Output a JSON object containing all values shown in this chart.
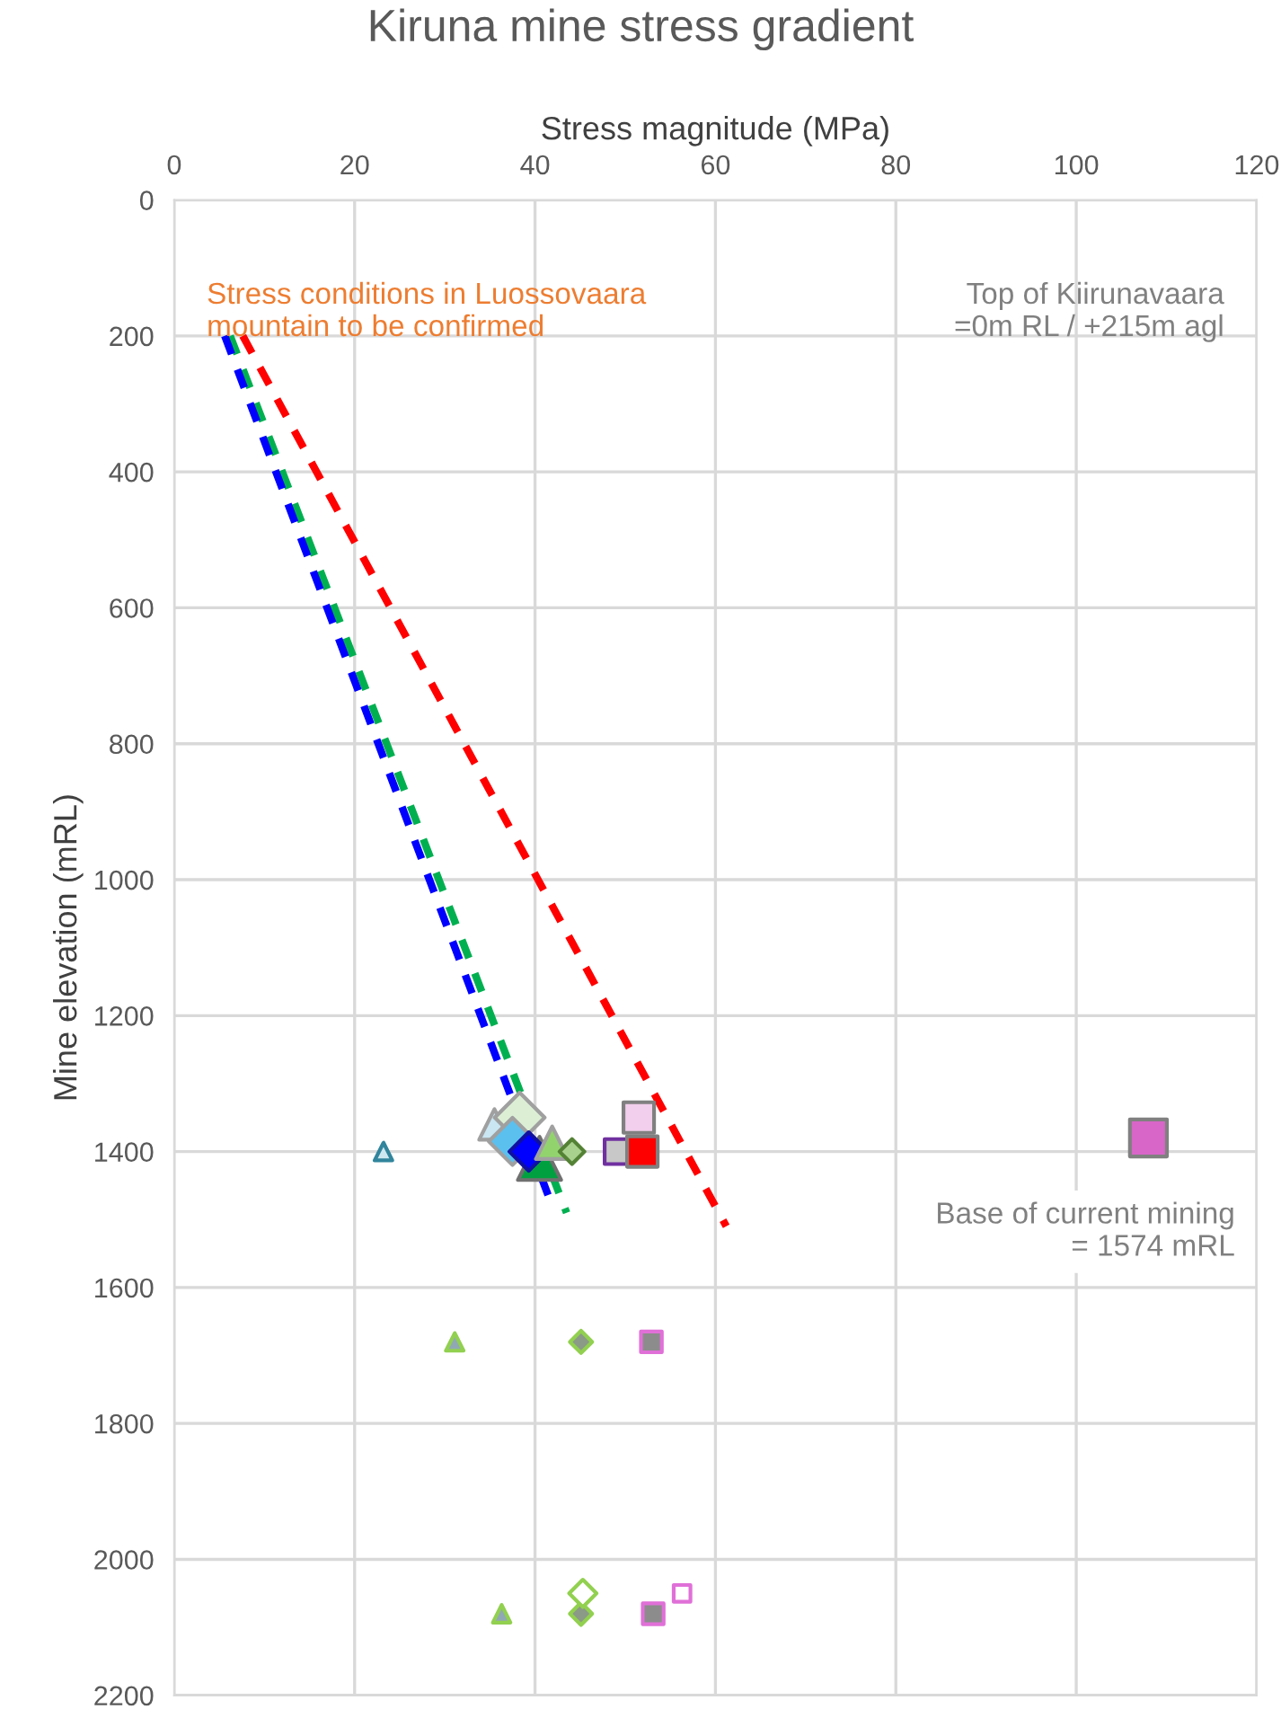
{
  "chart_data": {
    "type": "scatter",
    "title": "Kiruna mine stress gradient",
    "xlabel": "Stress magnitude (MPa)",
    "ylabel": "Mine elevation (mRL)",
    "xlim": [
      0,
      120
    ],
    "xticks": [
      0,
      20,
      40,
      60,
      80,
      100,
      120
    ],
    "ylim": [
      2200,
      0
    ],
    "yticks": [
      0,
      200,
      400,
      600,
      800,
      1000,
      1200,
      1400,
      1600,
      1800,
      2000,
      2200
    ],
    "grid": true,
    "legend": false,
    "series": [
      {
        "type": "line",
        "line_style": "dashed",
        "marker": "none",
        "color": "#ff0000",
        "x": [
          7.6,
          61.2
        ],
        "values": [
          200,
          1510
        ]
      },
      {
        "type": "line",
        "line_style": "dashed",
        "marker": "none",
        "color": "#00b050",
        "x": [
          6.2,
          43.5
        ],
        "values": [
          200,
          1490
        ]
      },
      {
        "type": "line",
        "line_style": "dashed",
        "marker": "none",
        "color": "#0000ff",
        "x": [
          5.6,
          41.9
        ],
        "values": [
          200,
          1480
        ]
      },
      {
        "marker": "triangle",
        "color": "#cde8f0",
        "x": [
          23.2
        ],
        "values": [
          1400
        ]
      },
      {
        "marker": "triangle",
        "color": "#c9e6f2",
        "x": [
          35.5
        ],
        "values": [
          1360
        ]
      },
      {
        "marker": "diamond",
        "color": "#dcefd5",
        "x": [
          38.3
        ],
        "values": [
          1350
        ]
      },
      {
        "marker": "diamond",
        "color": "#5bc0ee",
        "x": [
          37.5
        ],
        "values": [
          1385
        ]
      },
      {
        "marker": "triangle",
        "color": "#00a040",
        "x": [
          40.5
        ],
        "values": [
          1410
        ]
      },
      {
        "marker": "diamond",
        "color": "#0000ff",
        "x": [
          39.3
        ],
        "values": [
          1400
        ]
      },
      {
        "marker": "triangle",
        "color": "#92d36e",
        "x": [
          41.9
        ],
        "values": [
          1387
        ]
      },
      {
        "marker": "diamond",
        "color": "#a9d18e",
        "x": [
          44.1
        ],
        "values": [
          1400
        ]
      },
      {
        "marker": "square",
        "color": "#c8c8c8",
        "x": [
          49.1
        ],
        "values": [
          1400
        ]
      },
      {
        "marker": "square",
        "color": "#ff0000",
        "x": [
          51.9
        ],
        "values": [
          1400
        ]
      },
      {
        "marker": "square",
        "color": "#f2cfec",
        "x": [
          51.5
        ],
        "values": [
          1350
        ]
      },
      {
        "marker": "square",
        "color": "#d865c8",
        "x": [
          108
        ],
        "values": [
          1380
        ]
      },
      {
        "marker": "triangle",
        "color": "#8fa8b4",
        "x": [
          31.1,
          36.3
        ],
        "values": [
          1680,
          2080
        ]
      },
      {
        "marker": "diamond",
        "color": "#8a9a86",
        "x": [
          45.1,
          45.1
        ],
        "values": [
          1680,
          2080
        ]
      },
      {
        "marker": "square",
        "color": "#8c8c8c",
        "x": [
          52.9,
          53.1
        ],
        "values": [
          1680,
          2080
        ]
      },
      {
        "marker": "diamond",
        "color": "#ffffff",
        "x": [
          45.3
        ],
        "values": [
          2050
        ]
      },
      {
        "marker": "square",
        "color": "#ffffff",
        "x": [
          56.3
        ],
        "values": [
          2050
        ]
      }
    ],
    "annotations": [
      "Stress conditions in Luossovaara\nmountain to be confirmed",
      "Top of Kiirunavaara\n=0m RL / +215m agl",
      "Base of current mining\n= 1574 mRL"
    ]
  }
}
